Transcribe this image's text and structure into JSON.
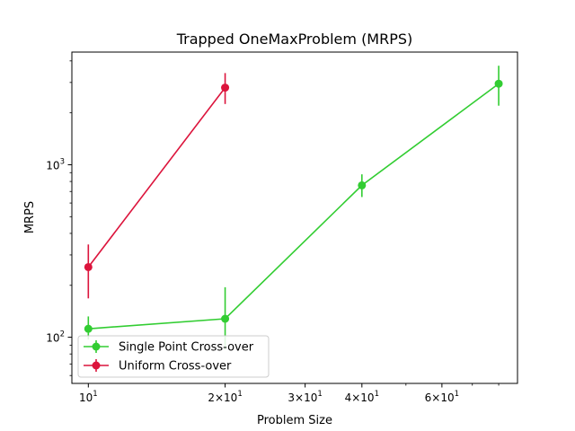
{
  "chart_data": {
    "type": "line",
    "title": "Trapped OneMaxProblem (MRPS)",
    "xlabel": "Problem Size",
    "ylabel": "MRPS",
    "xscale": "log",
    "yscale": "log",
    "xlim": [
      9.2,
      88
    ],
    "ylim": [
      54,
      4500
    ],
    "xticks": [
      {
        "value": 10,
        "base": "10",
        "coef": "",
        "exp": "1"
      },
      {
        "value": 20,
        "base": "10",
        "coef": "2×",
        "exp": "1"
      },
      {
        "value": 30,
        "base": "10",
        "coef": "3×",
        "exp": "1"
      },
      {
        "value": 40,
        "base": "10",
        "coef": "4×",
        "exp": "1"
      },
      {
        "value": 60,
        "base": "10",
        "coef": "6×",
        "exp": "1"
      }
    ],
    "xminor_ticks": [
      50,
      70,
      80
    ],
    "yticks": [
      {
        "value": 100,
        "base": "10",
        "exp": "2"
      },
      {
        "value": 1000,
        "base": "10",
        "exp": "3"
      }
    ],
    "yminor_ticks": [
      60,
      70,
      80,
      90,
      200,
      300,
      400,
      500,
      600,
      700,
      800,
      900,
      2000,
      3000,
      4000
    ],
    "grid": false,
    "legend_position": "lower-left",
    "series": [
      {
        "name": "Single Point Cross-over",
        "color": "#32cd32",
        "x": [
          10,
          20,
          40,
          80
        ],
        "y": [
          112,
          128,
          760,
          2950
        ],
        "yerr_low": [
          97,
          85,
          650,
          2200
        ],
        "yerr_high": [
          132,
          195,
          880,
          3750
        ]
      },
      {
        "name": "Uniform Cross-over",
        "color": "#dc143c",
        "x": [
          10,
          20
        ],
        "y": [
          255,
          2800
        ],
        "yerr_low": [
          168,
          2250
        ],
        "yerr_high": [
          345,
          3400
        ]
      }
    ]
  }
}
